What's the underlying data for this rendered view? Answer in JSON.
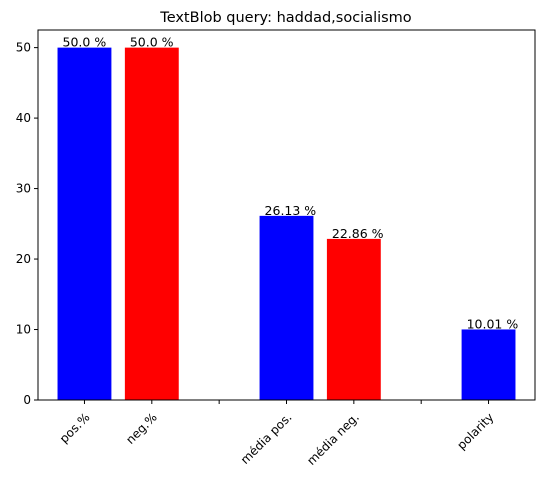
{
  "chart_data": {
    "type": "bar",
    "title": "TextBlob query: haddad,socialismo",
    "xlabel": "",
    "ylabel": "",
    "ylim": [
      0,
      52.5
    ],
    "yticks": [
      0,
      10,
      20,
      30,
      40,
      50
    ],
    "grid": false,
    "x_ticks": [
      0,
      1,
      2,
      3,
      4,
      5,
      6
    ],
    "x_tick_labels": [
      "pos.%",
      "neg.%",
      "",
      "média pos.",
      "média neg.",
      "",
      "polarity"
    ],
    "bars": [
      {
        "x": 0,
        "category": "pos.%",
        "value": 50.0,
        "label": "50.0 %",
        "color": "#0000ff"
      },
      {
        "x": 1,
        "category": "neg.%",
        "value": 50.0,
        "label": "50.0 %",
        "color": "#ff0000"
      },
      {
        "x": 3,
        "category": "média pos.",
        "value": 26.13,
        "label": "26.13 %",
        "color": "#0000ff"
      },
      {
        "x": 4,
        "category": "média neg.",
        "value": 22.86,
        "label": "22.86 %",
        "color": "#ff0000"
      },
      {
        "x": 6,
        "category": "polarity",
        "value": 10.01,
        "label": "10.01 %",
        "color": "#0000ff"
      }
    ]
  }
}
